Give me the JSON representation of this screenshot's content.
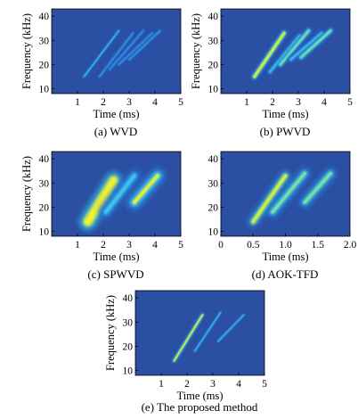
{
  "colors": {
    "background": "#2a4fa3",
    "colormap": [
      "#2a4fa3",
      "#2a63c4",
      "#2e8fe0",
      "#3cc3e6",
      "#86e28c",
      "#dcee3c",
      "#f4f232"
    ]
  },
  "chart_data": [
    {
      "type": "heatmap",
      "caption": "(a) WVD",
      "xlabel": "Time (ms)",
      "ylabel": "Frequency (kHz)",
      "xlim": [
        0,
        5
      ],
      "ylim": [
        8,
        43
      ],
      "xticks": [
        1,
        2,
        3,
        4,
        5
      ],
      "xtick_labels": [
        "1",
        "2",
        "3",
        "4",
        "5"
      ],
      "yticks": [
        10,
        20,
        30,
        40
      ],
      "ytick_labels": [
        "10",
        "20",
        "30",
        "40"
      ],
      "show_ylabel": true,
      "components": [
        {
          "t0": 1.25,
          "f0": 15,
          "t1": 2.6,
          "f1": 34,
          "intensity": 0.45,
          "width": 0.05
        },
        {
          "t0": 1.85,
          "f0": 15,
          "t1": 3.15,
          "f1": 33,
          "intensity": 0.35,
          "width": 0.05,
          "dashed": true
        },
        {
          "t0": 2.25,
          "f0": 18,
          "t1": 3.55,
          "f1": 34,
          "intensity": 0.35,
          "width": 0.05,
          "dashed": true
        },
        {
          "t0": 2.6,
          "f0": 20,
          "t1": 3.9,
          "f1": 33,
          "intensity": 0.35,
          "width": 0.05,
          "dashed": true
        },
        {
          "t0": 3.0,
          "f0": 22,
          "t1": 4.2,
          "f1": 34,
          "intensity": 0.4,
          "width": 0.05
        }
      ]
    },
    {
      "type": "heatmap",
      "caption": "(b) PWVD",
      "xlabel": "Time (ms)",
      "ylabel": "Frequency (kHz)",
      "xlim": [
        0,
        5
      ],
      "ylim": [
        8,
        43
      ],
      "xticks": [
        1,
        2,
        3,
        4,
        5
      ],
      "xtick_labels": [
        "1",
        "2",
        "3",
        "4",
        "5"
      ],
      "yticks": [
        10,
        20,
        30,
        40
      ],
      "ytick_labels": [
        "10",
        "20",
        "30",
        "40"
      ],
      "show_ylabel": true,
      "components": [
        {
          "t0": 1.3,
          "f0": 15,
          "t1": 2.45,
          "f1": 33,
          "intensity": 0.85,
          "width": 0.1
        },
        {
          "t0": 1.9,
          "f0": 17,
          "t1": 3.05,
          "f1": 32,
          "intensity": 0.5,
          "width": 0.1,
          "dashed": true
        },
        {
          "t0": 2.3,
          "f0": 20,
          "t1": 3.4,
          "f1": 34,
          "intensity": 0.6,
          "width": 0.09
        },
        {
          "t0": 2.7,
          "f0": 22,
          "t1": 3.9,
          "f1": 33,
          "intensity": 0.5,
          "width": 0.1,
          "dashed": true
        },
        {
          "t0": 3.1,
          "f0": 23,
          "t1": 4.25,
          "f1": 34,
          "intensity": 0.65,
          "width": 0.09
        }
      ]
    },
    {
      "type": "heatmap",
      "caption": "(c) SPWVD",
      "xlabel": "Time (ms)",
      "ylabel": "Frequency (kHz)",
      "xlim": [
        0,
        5
      ],
      "ylim": [
        8,
        43
      ],
      "xticks": [
        1,
        2,
        3,
        4,
        5
      ],
      "xtick_labels": [
        "1",
        "2",
        "3",
        "4",
        "5"
      ],
      "yticks": [
        10,
        20,
        30,
        40
      ],
      "ytick_labels": [
        "10",
        "20",
        "30",
        "40"
      ],
      "show_ylabel": true,
      "components": [
        {
          "t0": 1.4,
          "f0": 14,
          "t1": 2.4,
          "f1": 31,
          "intensity": 1.0,
          "width": 0.25
        },
        {
          "t0": 2.1,
          "f0": 18,
          "t1": 3.2,
          "f1": 33,
          "intensity": 0.55,
          "width": 0.22
        },
        {
          "t0": 3.2,
          "f0": 22,
          "t1": 4.1,
          "f1": 33,
          "intensity": 0.75,
          "width": 0.22
        }
      ]
    },
    {
      "type": "heatmap",
      "caption": "(d) AOK-TFD",
      "xlabel": "Time (ms)",
      "ylabel": "Frequency (kHz)",
      "xlim": [
        0,
        2
      ],
      "ylim": [
        8,
        43
      ],
      "xticks": [
        0,
        0.5,
        1.0,
        1.5,
        2.0
      ],
      "xtick_labels": [
        "0",
        "0.5",
        "1.0",
        "1.5",
        "2.0"
      ],
      "yticks": [
        10,
        20,
        30,
        40
      ],
      "ytick_labels": [
        "10",
        "20",
        "30",
        "40"
      ],
      "show_ylabel": false,
      "components": [
        {
          "t0": 0.5,
          "f0": 14,
          "t1": 1.0,
          "f1": 33,
          "intensity": 0.9,
          "width": 0.06
        },
        {
          "t0": 0.8,
          "f0": 18,
          "t1": 1.3,
          "f1": 34,
          "intensity": 0.6,
          "width": 0.06
        },
        {
          "t0": 1.3,
          "f0": 22,
          "t1": 1.7,
          "f1": 34,
          "intensity": 0.7,
          "width": 0.06
        }
      ]
    },
    {
      "type": "heatmap",
      "caption": "(e) The proposed method",
      "xlabel": "Time (ms)",
      "ylabel": "Frequency (kHz)",
      "xlim": [
        0,
        5
      ],
      "ylim": [
        8,
        43
      ],
      "xticks": [
        1,
        2,
        3,
        4,
        5
      ],
      "xtick_labels": [
        "1",
        "2",
        "3",
        "4",
        "5"
      ],
      "yticks": [
        10,
        20,
        30,
        40
      ],
      "ytick_labels": [
        "10",
        "20",
        "30",
        "40"
      ],
      "show_ylabel": true,
      "components": [
        {
          "t0": 1.5,
          "f0": 14,
          "t1": 2.6,
          "f1": 33,
          "intensity": 0.95,
          "width": 0.045
        },
        {
          "t0": 2.3,
          "f0": 18,
          "t1": 3.3,
          "f1": 34,
          "intensity": 0.45,
          "width": 0.045
        },
        {
          "t0": 3.2,
          "f0": 22,
          "t1": 4.2,
          "f1": 33,
          "intensity": 0.45,
          "width": 0.045
        }
      ]
    }
  ]
}
